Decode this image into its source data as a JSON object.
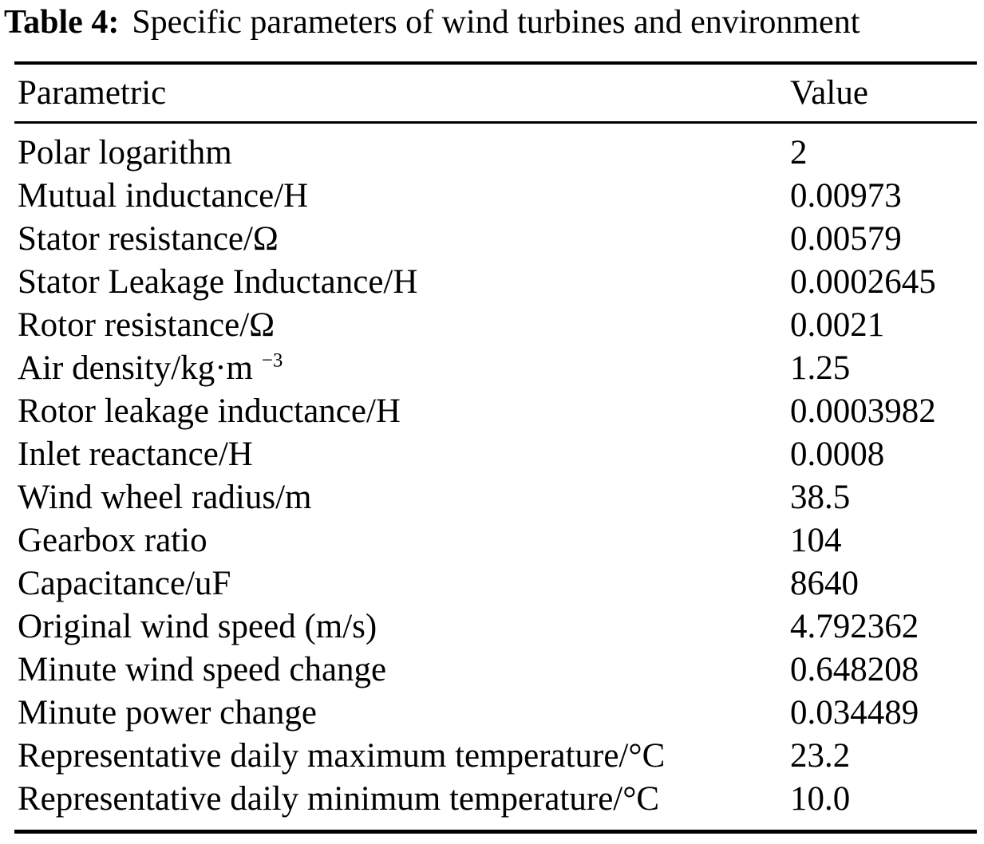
{
  "caption": {
    "label": "Table 4:",
    "text": "Specific parameters of wind turbines and environment"
  },
  "table": {
    "headers": {
      "parametric": "Parametric",
      "value": "Value"
    },
    "rows": [
      {
        "label": "Polar logarithm",
        "value": "2"
      },
      {
        "label": "Mutual inductance/H",
        "value": "0.00973"
      },
      {
        "label": "Stator resistance/Ω",
        "value": "0.00579"
      },
      {
        "label": "Stator Leakage Inductance/H",
        "value": "0.0002645"
      },
      {
        "label": "Rotor resistance/Ω",
        "value": "0.0021"
      },
      {
        "label": "Air density/kg·m",
        "label_sup": "−3",
        "value": "1.25"
      },
      {
        "label": "Rotor leakage inductance/H",
        "value": "0.0003982"
      },
      {
        "label": "Inlet reactance/H",
        "value": "0.0008"
      },
      {
        "label": "Wind wheel radius/m",
        "value": "38.5"
      },
      {
        "label": "Gearbox ratio",
        "value": "104"
      },
      {
        "label": "Capacitance/uF",
        "value": "8640"
      },
      {
        "label": "Original wind speed (m/s)",
        "value": "4.792362"
      },
      {
        "label": "Minute wind speed change",
        "value": "0.648208"
      },
      {
        "label": "Minute power change",
        "value": "0.034489"
      },
      {
        "label": "Representative daily maximum temperature/°C",
        "value": "23.2"
      },
      {
        "label": "Representative daily minimum temperature/°C",
        "value": "10.0"
      }
    ]
  },
  "colors": {
    "text": "#000000",
    "background": "#ffffff",
    "rule": "#000000"
  }
}
